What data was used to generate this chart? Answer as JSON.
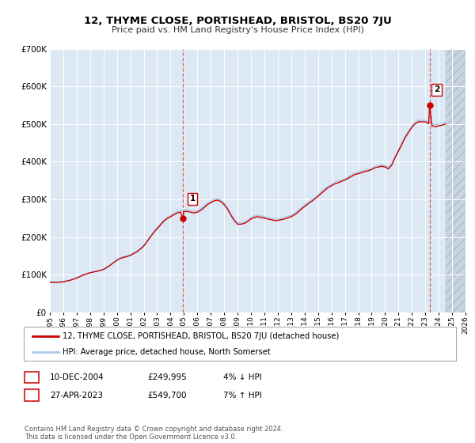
{
  "title": "12, THYME CLOSE, PORTISHEAD, BRISTOL, BS20 7JU",
  "subtitle": "Price paid vs. HM Land Registry's House Price Index (HPI)",
  "background_color": "#ffffff",
  "plot_bg_color": "#dce9f5",
  "plot_bg_future": "#d0d8e8",
  "grid_color": "#ffffff",
  "hpi_line_color": "#a8c8e8",
  "price_line_color": "#cc0000",
  "ylim": [
    0,
    700000
  ],
  "yticks": [
    0,
    100000,
    200000,
    300000,
    400000,
    500000,
    600000,
    700000
  ],
  "ytick_labels": [
    "£0",
    "£100K",
    "£200K",
    "£300K",
    "£400K",
    "£500K",
    "£600K",
    "£700K"
  ],
  "xmin": 1995,
  "xmax": 2026,
  "data_end": 2024.5,
  "annotation1": {
    "label": "1",
    "price": 249995,
    "x_year": 2004.92
  },
  "annotation2": {
    "label": "2",
    "price": 549700,
    "x_year": 2023.33
  },
  "legend_line1": "12, THYME CLOSE, PORTISHEAD, BRISTOL, BS20 7JU (detached house)",
  "legend_line2": "HPI: Average price, detached house, North Somerset",
  "table_row1": [
    "1",
    "10-DEC-2004",
    "£249,995",
    "4% ↓ HPI"
  ],
  "table_row2": [
    "2",
    "27-APR-2023",
    "£549,700",
    "7% ↑ HPI"
  ],
  "footer": "Contains HM Land Registry data © Crown copyright and database right 2024.\nThis data is licensed under the Open Government Licence v3.0.",
  "hpi_data": {
    "years": [
      1995.0,
      1995.25,
      1995.5,
      1995.75,
      1996.0,
      1996.25,
      1996.5,
      1996.75,
      1997.0,
      1997.25,
      1997.5,
      1997.75,
      1998.0,
      1998.25,
      1998.5,
      1998.75,
      1999.0,
      1999.25,
      1999.5,
      1999.75,
      2000.0,
      2000.25,
      2000.5,
      2000.75,
      2001.0,
      2001.25,
      2001.5,
      2001.75,
      2002.0,
      2002.25,
      2002.5,
      2002.75,
      2003.0,
      2003.25,
      2003.5,
      2003.75,
      2004.0,
      2004.25,
      2004.5,
      2004.75,
      2005.0,
      2005.25,
      2005.5,
      2005.75,
      2006.0,
      2006.25,
      2006.5,
      2006.75,
      2007.0,
      2007.25,
      2007.5,
      2007.75,
      2008.0,
      2008.25,
      2008.5,
      2008.75,
      2009.0,
      2009.25,
      2009.5,
      2009.75,
      2010.0,
      2010.25,
      2010.5,
      2010.75,
      2011.0,
      2011.25,
      2011.5,
      2011.75,
      2012.0,
      2012.25,
      2012.5,
      2012.75,
      2013.0,
      2013.25,
      2013.5,
      2013.75,
      2014.0,
      2014.25,
      2014.5,
      2014.75,
      2015.0,
      2015.25,
      2015.5,
      2015.75,
      2016.0,
      2016.25,
      2016.5,
      2016.75,
      2017.0,
      2017.25,
      2017.5,
      2017.75,
      2018.0,
      2018.25,
      2018.5,
      2018.75,
      2019.0,
      2019.25,
      2019.5,
      2019.75,
      2020.0,
      2020.25,
      2020.5,
      2020.75,
      2021.0,
      2021.25,
      2021.5,
      2021.75,
      2022.0,
      2022.25,
      2022.5,
      2022.75,
      2023.0,
      2023.25,
      2023.5,
      2023.75,
      2024.0,
      2024.25,
      2024.5
    ],
    "values": [
      82000,
      81000,
      80500,
      81000,
      82000,
      84000,
      86000,
      89000,
      92000,
      96000,
      100000,
      103000,
      106000,
      108000,
      110000,
      112000,
      115000,
      120000,
      126000,
      133000,
      140000,
      145000,
      148000,
      150000,
      153000,
      158000,
      163000,
      170000,
      178000,
      190000,
      203000,
      215000,
      225000,
      235000,
      245000,
      252000,
      258000,
      263000,
      268000,
      270000,
      272000,
      272000,
      270000,
      268000,
      270000,
      275000,
      282000,
      290000,
      295000,
      300000,
      302000,
      298000,
      290000,
      278000,
      262000,
      248000,
      238000,
      238000,
      240000,
      245000,
      252000,
      256000,
      258000,
      256000,
      254000,
      252000,
      250000,
      248000,
      248000,
      250000,
      252000,
      255000,
      258000,
      263000,
      270000,
      278000,
      285000,
      292000,
      298000,
      305000,
      312000,
      320000,
      328000,
      335000,
      340000,
      345000,
      348000,
      352000,
      355000,
      360000,
      365000,
      370000,
      372000,
      375000,
      378000,
      380000,
      383000,
      388000,
      390000,
      392000,
      390000,
      385000,
      395000,
      415000,
      432000,
      450000,
      468000,
      482000,
      495000,
      505000,
      510000,
      510000,
      510000,
      505000,
      500000,
      498000,
      500000,
      502000,
      505000
    ]
  },
  "price_data": {
    "years": [
      1995.0,
      1995.25,
      1995.5,
      1995.75,
      1996.0,
      1996.25,
      1996.5,
      1996.75,
      1997.0,
      1997.25,
      1997.5,
      1997.75,
      1998.0,
      1998.25,
      1998.5,
      1998.75,
      1999.0,
      1999.25,
      1999.5,
      1999.75,
      2000.0,
      2000.25,
      2000.5,
      2000.75,
      2001.0,
      2001.25,
      2001.5,
      2001.75,
      2002.0,
      2002.25,
      2002.5,
      2002.75,
      2003.0,
      2003.25,
      2003.5,
      2003.75,
      2004.0,
      2004.25,
      2004.5,
      2004.75,
      2004.92,
      2005.0,
      2005.25,
      2005.5,
      2005.75,
      2006.0,
      2006.25,
      2006.5,
      2006.75,
      2007.0,
      2007.25,
      2007.5,
      2007.75,
      2008.0,
      2008.25,
      2008.5,
      2008.75,
      2009.0,
      2009.25,
      2009.5,
      2009.75,
      2010.0,
      2010.25,
      2010.5,
      2010.75,
      2011.0,
      2011.25,
      2011.5,
      2011.75,
      2012.0,
      2012.25,
      2012.5,
      2012.75,
      2013.0,
      2013.25,
      2013.5,
      2013.75,
      2014.0,
      2014.25,
      2014.5,
      2014.75,
      2015.0,
      2015.25,
      2015.5,
      2015.75,
      2016.0,
      2016.25,
      2016.5,
      2016.75,
      2017.0,
      2017.25,
      2017.5,
      2017.75,
      2018.0,
      2018.25,
      2018.5,
      2018.75,
      2019.0,
      2019.25,
      2019.5,
      2019.75,
      2020.0,
      2020.25,
      2020.5,
      2020.75,
      2021.0,
      2021.25,
      2021.5,
      2021.75,
      2022.0,
      2022.25,
      2022.5,
      2022.75,
      2023.0,
      2023.25,
      2023.33,
      2023.5,
      2023.75,
      2024.0,
      2024.25,
      2024.5
    ],
    "values": [
      80000,
      79000,
      79500,
      80000,
      81000,
      83000,
      85000,
      88000,
      91000,
      95000,
      99000,
      102000,
      105000,
      107000,
      109000,
      111000,
      114000,
      119000,
      125000,
      132000,
      138000,
      143000,
      146000,
      148000,
      151000,
      156000,
      161000,
      168000,
      176000,
      188000,
      200000,
      212000,
      222000,
      232000,
      242000,
      249000,
      254000,
      259000,
      264000,
      266000,
      249995,
      268000,
      268000,
      266000,
      264000,
      266000,
      271000,
      278000,
      286000,
      291000,
      296000,
      298000,
      294000,
      286000,
      274000,
      258000,
      244000,
      234000,
      234000,
      236000,
      241000,
      248000,
      252000,
      254000,
      252000,
      250000,
      248000,
      246000,
      244000,
      244000,
      246000,
      248000,
      251000,
      254000,
      259000,
      266000,
      274000,
      281000,
      288000,
      294000,
      301000,
      308000,
      316000,
      324000,
      331000,
      336000,
      341000,
      344000,
      348000,
      351000,
      356000,
      361000,
      366000,
      368000,
      371000,
      374000,
      376000,
      379000,
      384000,
      386000,
      388000,
      386000,
      381000,
      391000,
      411000,
      428000,
      446000,
      464000,
      478000,
      491000,
      501000,
      506000,
      506000,
      506000,
      501000,
      549700,
      495000,
      493000,
      495000,
      497000,
      500000
    ]
  }
}
